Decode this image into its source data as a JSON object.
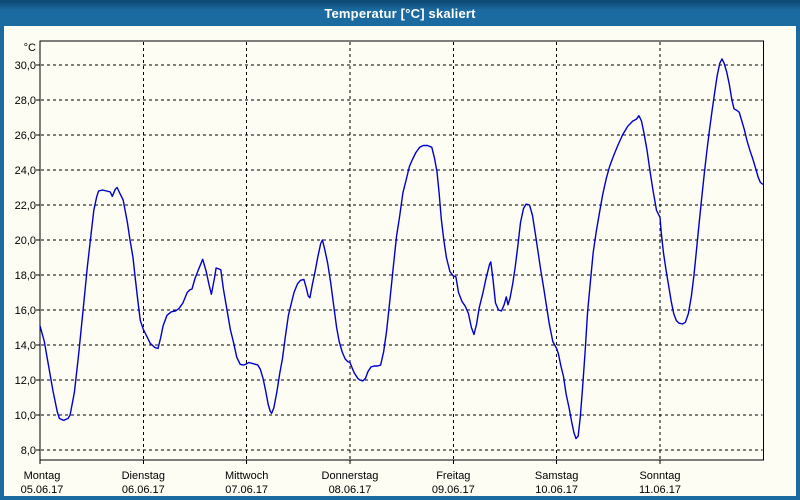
{
  "window": {
    "title": "Temperatur [°C] skaliert",
    "titlebar_color": "#1C6BA0",
    "border_color": "#1C6BA0",
    "background_color": "#FDFDF4"
  },
  "chart_data": {
    "type": "line",
    "title": "Temperatur [°C] skaliert",
    "grid": {
      "show": true,
      "style": "dashed",
      "color": "#000000"
    },
    "y_axis": {
      "unit_label": "°C",
      "tick_values": [
        30,
        28,
        26,
        24,
        22,
        20,
        18,
        16,
        14,
        12,
        10,
        8
      ],
      "tick_labels": [
        "30,0",
        "28,0",
        "26,0",
        "24,0",
        "22,0",
        "20,0",
        "18,0",
        "16,0",
        "14,0",
        "12,0",
        "10,0",
        "8,0"
      ],
      "ylim": [
        7.4,
        31.4
      ]
    },
    "x_axis": {
      "hours_per_day": 24,
      "xlim_hours": [
        0,
        168
      ],
      "days": [
        {
          "name": "Montag",
          "date": "05.06.17"
        },
        {
          "name": "Dienstag",
          "date": "06.06.17"
        },
        {
          "name": "Mittwoch",
          "date": "07.06.17"
        },
        {
          "name": "Donnerstag",
          "date": "08.06.17"
        },
        {
          "name": "Freitag",
          "date": "09.06.17"
        },
        {
          "name": "Samstag",
          "date": "10.06.17"
        },
        {
          "name": "Sonntag",
          "date": "11.06.17"
        }
      ]
    },
    "series": [
      {
        "name": "Temperatur",
        "color": "#0000CD",
        "points": [
          [
            0,
            15.1
          ],
          [
            1,
            14.2
          ],
          [
            2,
            12.8
          ],
          [
            3,
            11.4
          ],
          [
            4,
            10.2
          ],
          [
            4.5,
            9.8
          ],
          [
            5.5,
            9.7
          ],
          [
            6.5,
            9.8
          ],
          [
            7,
            10.0
          ],
          [
            8,
            11.3
          ],
          [
            9,
            13.5
          ],
          [
            10,
            16.0
          ],
          [
            11,
            18.5
          ],
          [
            11.7,
            20.0
          ],
          [
            12.5,
            21.7
          ],
          [
            13.2,
            22.5
          ],
          [
            13.6,
            22.8
          ],
          [
            14.5,
            22.85
          ],
          [
            15.5,
            22.8
          ],
          [
            16.3,
            22.75
          ],
          [
            16.8,
            22.5
          ],
          [
            17.5,
            22.9
          ],
          [
            17.9,
            23.0
          ],
          [
            18.5,
            22.7
          ],
          [
            19.3,
            22.3
          ],
          [
            20.3,
            21.0
          ],
          [
            20.9,
            20.0
          ],
          [
            21.6,
            19.0
          ],
          [
            22,
            18.1
          ],
          [
            22.7,
            16.6
          ],
          [
            23.3,
            15.4
          ],
          [
            24,
            14.9
          ],
          [
            24.8,
            14.5
          ],
          [
            25.6,
            14.1
          ],
          [
            26.7,
            13.85
          ],
          [
            27.4,
            13.8
          ],
          [
            28,
            14.4
          ],
          [
            28.6,
            15.1
          ],
          [
            29.5,
            15.7
          ],
          [
            30.5,
            15.9
          ],
          [
            31.5,
            15.95
          ],
          [
            32.3,
            16.1
          ],
          [
            33.2,
            16.4
          ],
          [
            34.2,
            17.0
          ],
          [
            34.8,
            17.15
          ],
          [
            35.3,
            17.2
          ],
          [
            36,
            17.8
          ],
          [
            36.8,
            18.3
          ],
          [
            37.8,
            18.9
          ],
          [
            38.6,
            18.2
          ],
          [
            39.3,
            17.4
          ],
          [
            39.8,
            16.9
          ],
          [
            40.5,
            17.8
          ],
          [
            40.9,
            18.4
          ],
          [
            41.5,
            18.35
          ],
          [
            42,
            18.3
          ],
          [
            42.6,
            17.2
          ],
          [
            43.3,
            16.2
          ],
          [
            44.2,
            14.9
          ],
          [
            44.9,
            14.2
          ],
          [
            45.7,
            13.3
          ],
          [
            46.5,
            12.9
          ],
          [
            47.2,
            12.85
          ],
          [
            47.8,
            12.9
          ],
          [
            48.5,
            13.0
          ],
          [
            49.3,
            12.95
          ],
          [
            50,
            12.9
          ],
          [
            50.6,
            12.85
          ],
          [
            51.2,
            12.6
          ],
          [
            51.8,
            12.1
          ],
          [
            52.4,
            11.4
          ],
          [
            53,
            10.6
          ],
          [
            53.5,
            10.2
          ],
          [
            53.8,
            10.1
          ],
          [
            54.3,
            10.4
          ],
          [
            55,
            11.3
          ],
          [
            55.7,
            12.4
          ],
          [
            56.3,
            13.2
          ],
          [
            57,
            14.5
          ],
          [
            57.7,
            15.7
          ],
          [
            58.4,
            16.4
          ],
          [
            59,
            17.0
          ],
          [
            59.8,
            17.5
          ],
          [
            60.5,
            17.7
          ],
          [
            61.3,
            17.75
          ],
          [
            61.8,
            17.3
          ],
          [
            62.3,
            16.8
          ],
          [
            62.7,
            16.7
          ],
          [
            63.3,
            17.5
          ],
          [
            63.9,
            18.2
          ],
          [
            64.5,
            19.0
          ],
          [
            65.2,
            19.8
          ],
          [
            65.6,
            20.0
          ],
          [
            66.1,
            19.5
          ],
          [
            66.8,
            18.7
          ],
          [
            67.5,
            17.6
          ],
          [
            68.2,
            16.3
          ],
          [
            68.9,
            15.0
          ],
          [
            69.5,
            14.2
          ],
          [
            70.2,
            13.6
          ],
          [
            70.9,
            13.2
          ],
          [
            71.5,
            13.05
          ],
          [
            72,
            13.0
          ],
          [
            72.5,
            12.7
          ],
          [
            73,
            12.4
          ],
          [
            73.8,
            12.1
          ],
          [
            74.3,
            12.0
          ],
          [
            75,
            11.95
          ],
          [
            75.6,
            12.1
          ],
          [
            76.2,
            12.5
          ],
          [
            76.9,
            12.75
          ],
          [
            77.6,
            12.8
          ],
          [
            78.4,
            12.8
          ],
          [
            79.1,
            12.85
          ],
          [
            79.8,
            13.6
          ],
          [
            80.5,
            14.8
          ],
          [
            81.2,
            16.4
          ],
          [
            82,
            18.3
          ],
          [
            82.8,
            20.2
          ],
          [
            83.5,
            21.3
          ],
          [
            84.3,
            22.7
          ],
          [
            85,
            23.4
          ],
          [
            85.8,
            24.2
          ],
          [
            86.5,
            24.6
          ],
          [
            87.3,
            25.0
          ],
          [
            88.2,
            25.3
          ],
          [
            89,
            25.4
          ],
          [
            90,
            25.4
          ],
          [
            91,
            25.3
          ],
          [
            91.6,
            24.7
          ],
          [
            92.2,
            23.9
          ],
          [
            92.7,
            22.7
          ],
          [
            93.2,
            21.2
          ],
          [
            93.8,
            20.0
          ],
          [
            94.4,
            19.0
          ],
          [
            95.2,
            18.2
          ],
          [
            96,
            17.95
          ],
          [
            96.6,
            17.9
          ],
          [
            97.2,
            17.0
          ],
          [
            98,
            16.5
          ],
          [
            98.8,
            16.2
          ],
          [
            99.5,
            15.8
          ],
          [
            100.2,
            15.0
          ],
          [
            100.8,
            14.6
          ],
          [
            101.4,
            15.2
          ],
          [
            102,
            16.1
          ],
          [
            102.9,
            17.0
          ],
          [
            103.6,
            17.8
          ],
          [
            104.4,
            18.6
          ],
          [
            104.7,
            18.75
          ],
          [
            105.2,
            17.8
          ],
          [
            105.8,
            16.4
          ],
          [
            106.5,
            16.0
          ],
          [
            107.2,
            15.95
          ],
          [
            107.8,
            16.3
          ],
          [
            108.3,
            16.75
          ],
          [
            108.7,
            16.3
          ],
          [
            109.2,
            16.7
          ],
          [
            109.8,
            17.5
          ],
          [
            110.4,
            18.5
          ],
          [
            111,
            19.7
          ],
          [
            111.6,
            21.0
          ],
          [
            112.3,
            21.8
          ],
          [
            112.9,
            22.05
          ],
          [
            113.7,
            22.0
          ],
          [
            114.4,
            21.4
          ],
          [
            115.1,
            20.3
          ],
          [
            115.7,
            19.3
          ],
          [
            116.3,
            18.3
          ],
          [
            116.9,
            17.4
          ],
          [
            117.6,
            16.3
          ],
          [
            118.3,
            15.2
          ],
          [
            119.1,
            14.2
          ],
          [
            120,
            13.8
          ],
          [
            120.4,
            13.5
          ],
          [
            121,
            12.8
          ],
          [
            121.6,
            12.2
          ],
          [
            122.2,
            11.2
          ],
          [
            122.9,
            10.4
          ],
          [
            123.5,
            9.6
          ],
          [
            124,
            9.0
          ],
          [
            124.5,
            8.65
          ],
          [
            125,
            8.8
          ],
          [
            125.5,
            9.9
          ],
          [
            126,
            11.5
          ],
          [
            126.6,
            13.6
          ],
          [
            127.2,
            15.9
          ],
          [
            127.9,
            17.8
          ],
          [
            128.5,
            19.3
          ],
          [
            129.2,
            20.5
          ],
          [
            129.9,
            21.5
          ],
          [
            130.7,
            22.6
          ],
          [
            131.5,
            23.5
          ],
          [
            132.3,
            24.2
          ],
          [
            133.2,
            24.8
          ],
          [
            134.2,
            25.4
          ],
          [
            135.3,
            26.0
          ],
          [
            136.5,
            26.5
          ],
          [
            137.7,
            26.8
          ],
          [
            138.5,
            26.9
          ],
          [
            139.1,
            27.1
          ],
          [
            139.7,
            26.8
          ],
          [
            140.3,
            26.1
          ],
          [
            141,
            25.1
          ],
          [
            141.7,
            23.9
          ],
          [
            142.4,
            22.8
          ],
          [
            143.2,
            21.7
          ],
          [
            144,
            21.3
          ],
          [
            144.3,
            20.4
          ],
          [
            144.8,
            19.3
          ],
          [
            145.4,
            18.3
          ],
          [
            146,
            17.4
          ],
          [
            146.6,
            16.5
          ],
          [
            147.2,
            15.8
          ],
          [
            147.8,
            15.4
          ],
          [
            148.4,
            15.25
          ],
          [
            149.2,
            15.2
          ],
          [
            149.9,
            15.3
          ],
          [
            150.6,
            15.8
          ],
          [
            151.3,
            16.8
          ],
          [
            151.9,
            18.0
          ],
          [
            152.5,
            19.5
          ],
          [
            153.1,
            21.0
          ],
          [
            153.7,
            22.4
          ],
          [
            154.3,
            23.8
          ],
          [
            154.9,
            25.1
          ],
          [
            155.5,
            26.3
          ],
          [
            156.1,
            27.4
          ],
          [
            156.7,
            28.4
          ],
          [
            157.3,
            29.4
          ],
          [
            157.9,
            30.1
          ],
          [
            158.4,
            30.35
          ],
          [
            158.9,
            30.1
          ],
          [
            159.5,
            29.6
          ],
          [
            160.1,
            28.9
          ],
          [
            160.7,
            28.0
          ],
          [
            161.2,
            27.5
          ],
          [
            161.9,
            27.4
          ],
          [
            162.4,
            27.3
          ],
          [
            163,
            26.8
          ],
          [
            163.6,
            26.3
          ],
          [
            164.2,
            25.7
          ],
          [
            164.9,
            25.1
          ],
          [
            165.6,
            24.6
          ],
          [
            166.2,
            24.1
          ],
          [
            166.8,
            23.6
          ],
          [
            167.3,
            23.3
          ],
          [
            167.8,
            23.2
          ]
        ]
      }
    ]
  }
}
